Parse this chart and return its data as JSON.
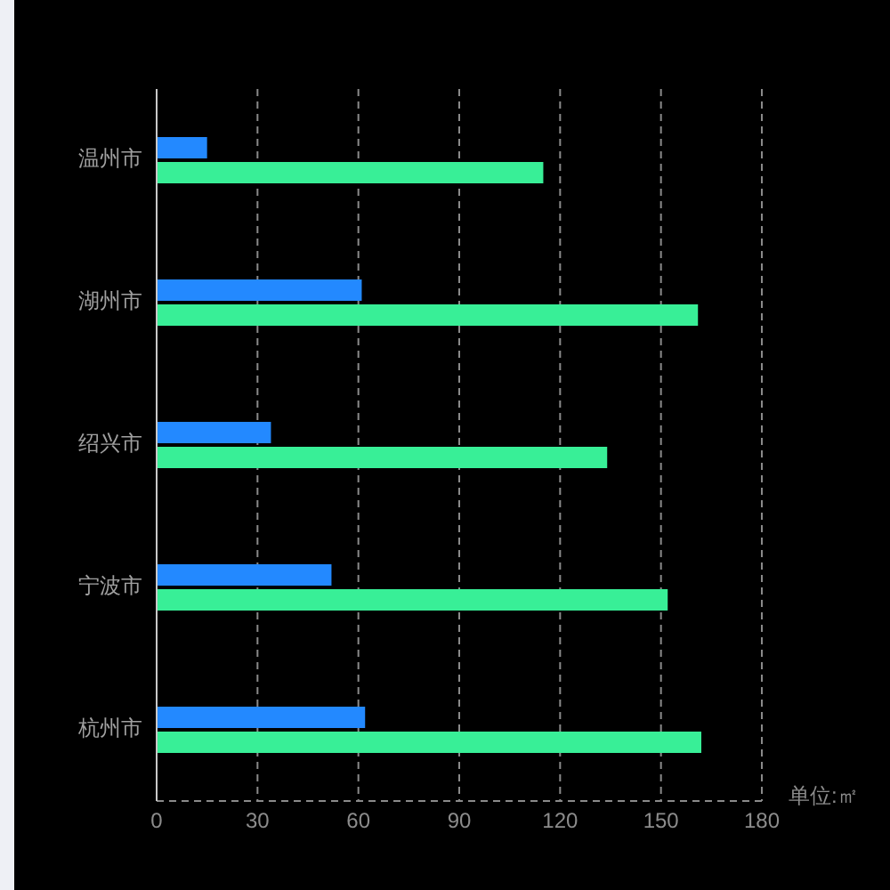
{
  "chart_data": {
    "type": "bar",
    "orientation": "horizontal",
    "xlabel": "单位:㎡",
    "categories": [
      "温州市",
      "湖州市",
      "绍兴市",
      "宁波市",
      "杭州市"
    ],
    "series": [
      {
        "color": "#2389ff",
        "values": [
          15,
          61,
          34,
          52,
          62
        ]
      },
      {
        "color": "#38ef97",
        "values": [
          115,
          161,
          134,
          152,
          162
        ]
      }
    ],
    "xlim": [
      0,
      180
    ],
    "xticks": [
      0,
      30,
      60,
      90,
      120,
      150,
      180
    ],
    "grid": "x"
  }
}
